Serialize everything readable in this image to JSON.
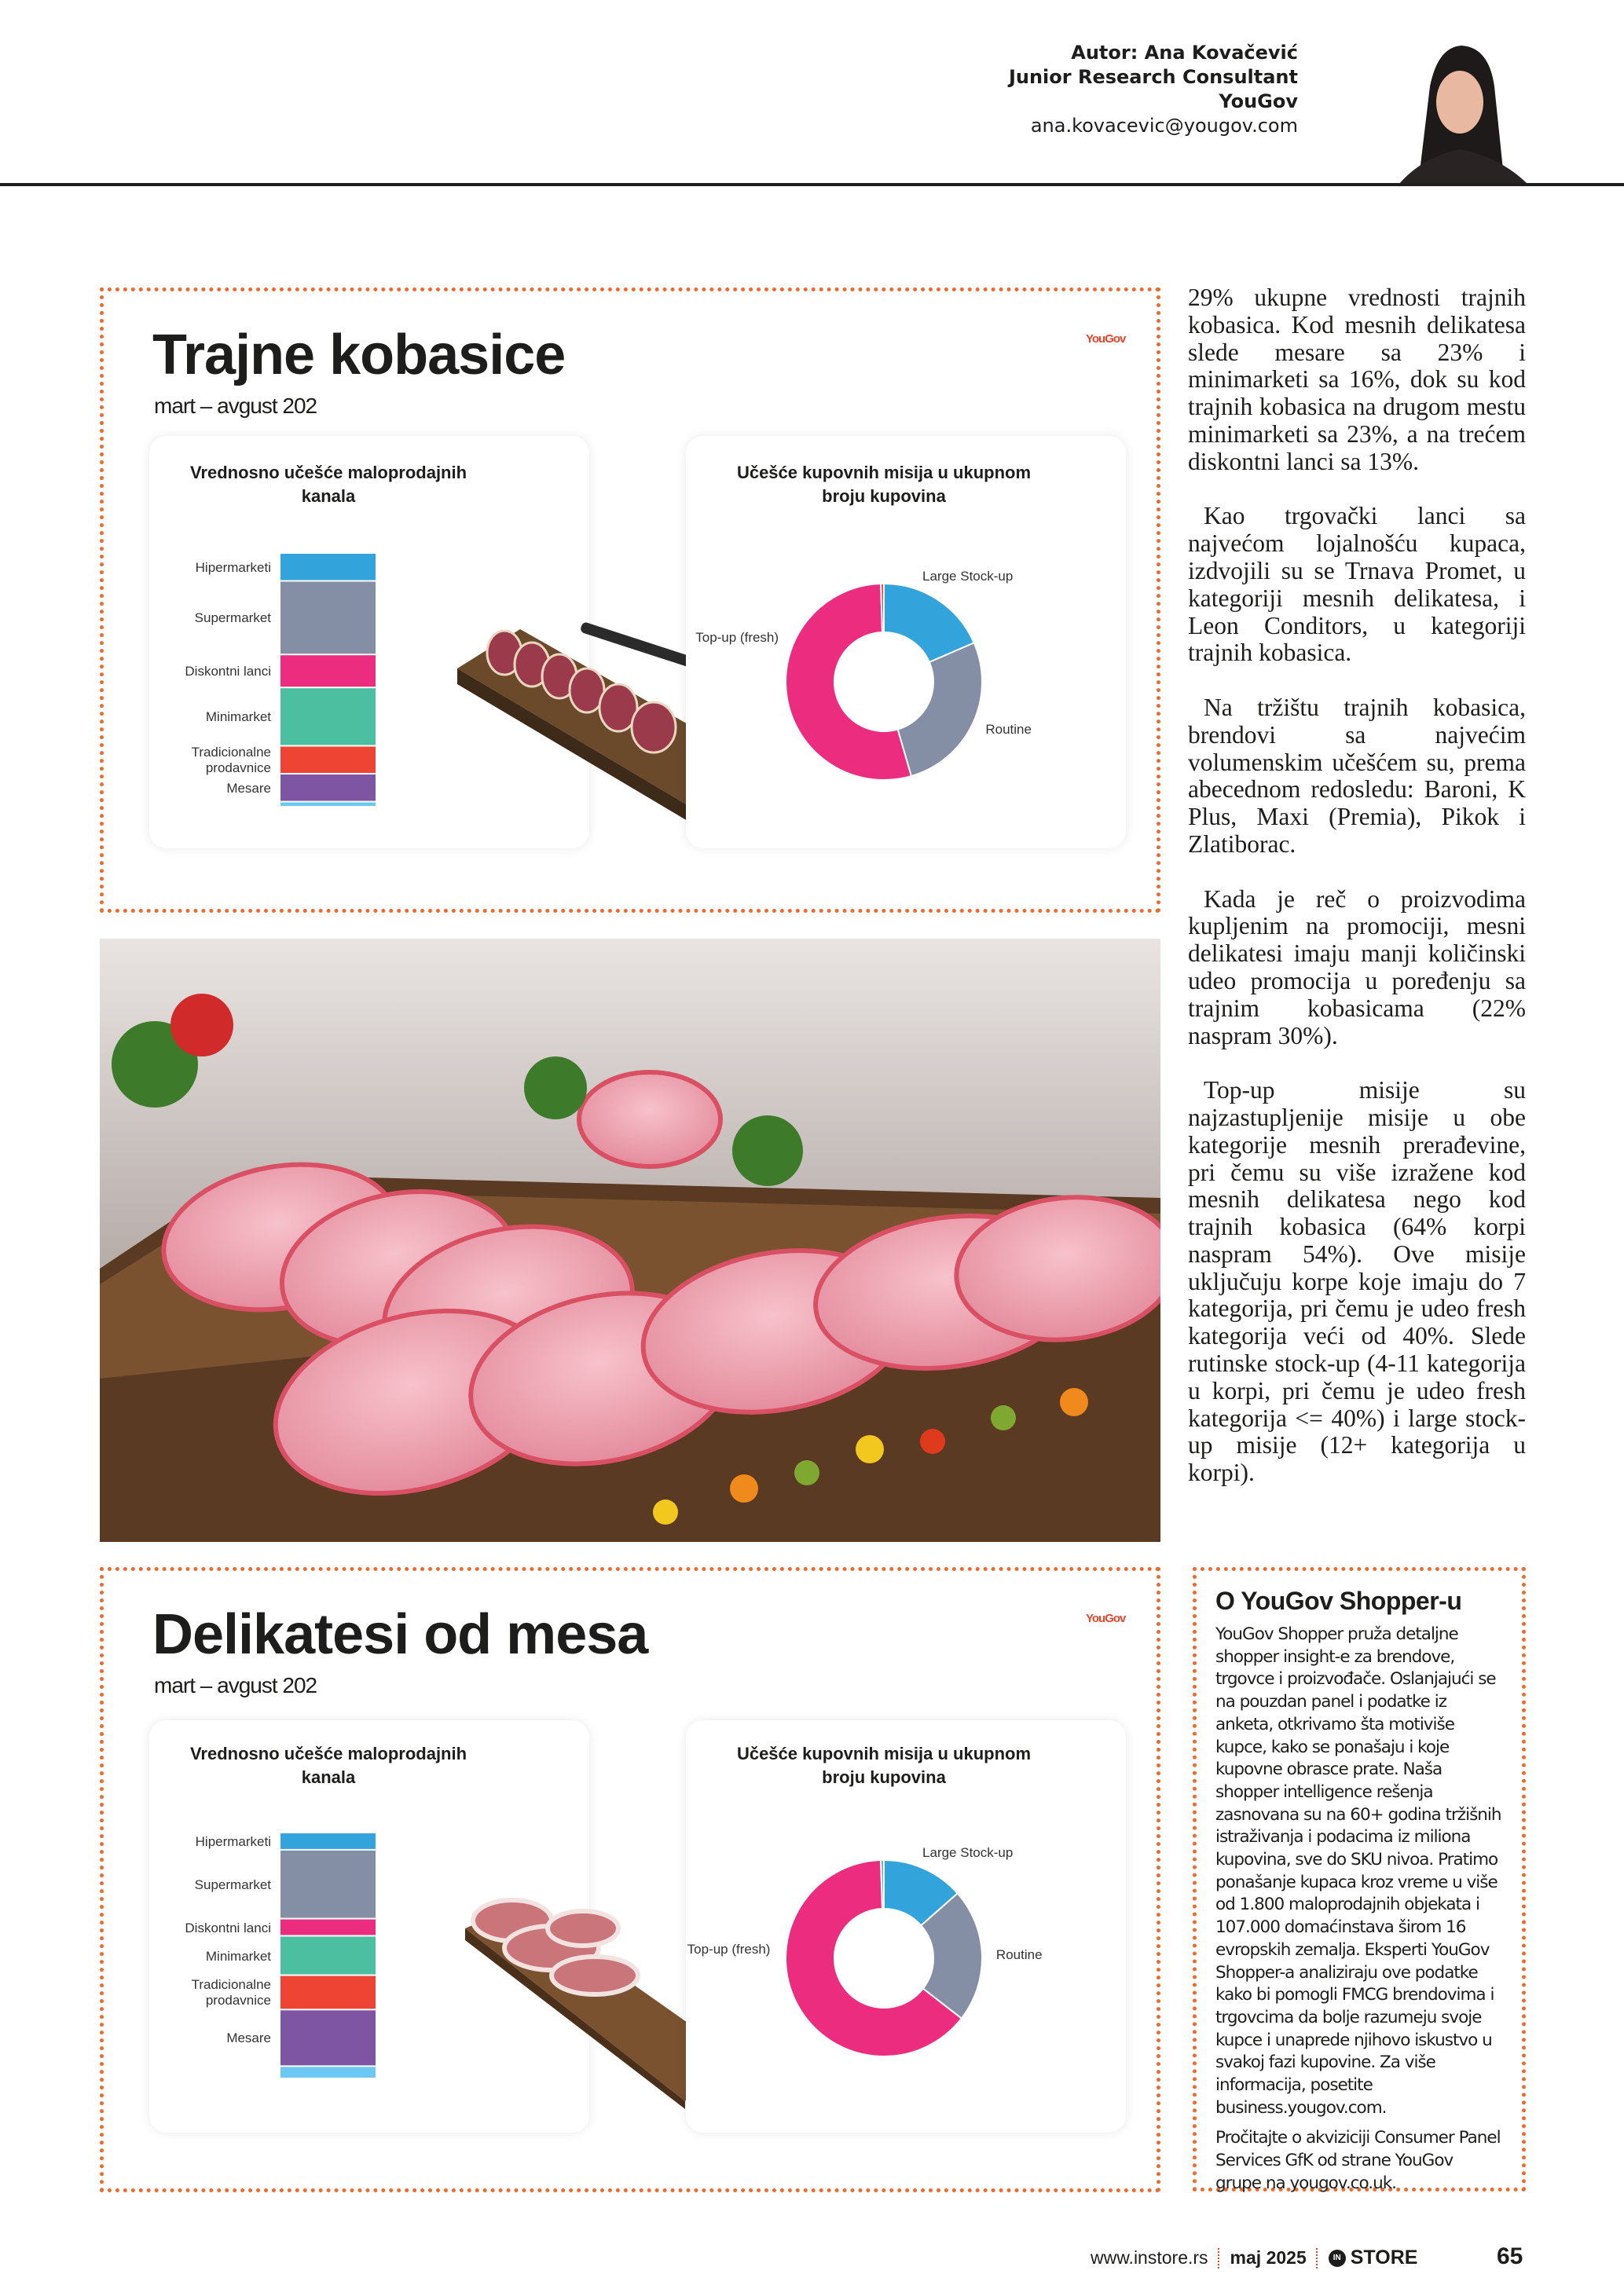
{
  "author": {
    "name": "Autor: Ana Kovačević",
    "role": "Junior Research Consultant",
    "company": "YouGov",
    "email": "ana.kovacevic@yougov.com"
  },
  "sections": [
    {
      "title": "Trajne kobasice",
      "subtitle": "mart – avgust 202",
      "logo": "YouGov"
    },
    {
      "title": "Delikatesi od mesa",
      "subtitle": "mart – avgust 202",
      "logo": "YouGov"
    }
  ],
  "chart_data": [
    {
      "type": "bar",
      "stacked": true,
      "title": "Vrednosno učešće maloprodajnih kanala",
      "categories": [
        "Hipermarketi",
        "Supermarket",
        "Diskontni lanci",
        "Minimarket",
        "Tradicionalne prodavnice",
        "Mesare",
        ""
      ],
      "values": [
        11,
        29,
        13,
        23,
        11,
        11,
        2
      ],
      "colors": [
        "#33a3dc",
        "#848ea4",
        "#ec2c7f",
        "#4bbfa0",
        "#ee4433",
        "#7e55a3",
        "#6cc8f2"
      ]
    },
    {
      "type": "pie",
      "donut": true,
      "title": "Učešće kupovnih misija u ukupnom broju kupovina",
      "categories": [
        "Large Stock-up",
        "Routine",
        "Top-up (fresh)",
        ""
      ],
      "values": [
        18.5,
        27,
        54,
        0.5
      ],
      "colors": [
        "#33a3dc",
        "#848ea4",
        "#ec2c7f",
        "#ee4433"
      ]
    },
    {
      "type": "bar",
      "stacked": true,
      "title": "Vrednosno učešće maloprodajnih kanala",
      "categories": [
        "Hipermarketi",
        "Supermarket",
        "Diskontni lanci",
        "Minimarket",
        "Tradicionalne prodavnice",
        "Mesare",
        ""
      ],
      "values": [
        7,
        28,
        7,
        16,
        14,
        23,
        5
      ],
      "colors": [
        "#33a3dc",
        "#848ea4",
        "#ec2c7f",
        "#4bbfa0",
        "#ee4433",
        "#7e55a3",
        "#6cc8f2"
      ]
    },
    {
      "type": "pie",
      "donut": true,
      "title": "Učešće kupovnih misija u ukupnom broju kupovina",
      "categories": [
        "Large Stock-up",
        "Routine",
        "Top-up (fresh)",
        ""
      ],
      "values": [
        13.5,
        22,
        64,
        0.5
      ],
      "colors": [
        "#33a3dc",
        "#848ea4",
        "#ec2c7f",
        "#4bbfa0"
      ]
    }
  ],
  "article": {
    "paragraphs": [
      "29% ukupne vrednosti trajnih kobasica. Kod mesnih delikatesa slede mesare sa 23% i minimarketi sa 16%, dok su kod trajnih kobasica na drugom mestu minimarketi sa 23%, a na trećem diskontni lanci sa 13%.",
      "Kao trgovački lanci sa najvećom lojalnošću kupaca, izdvojili su se Trnava Promet, u kategoriji mesnih delikatesa, i Leon Conditors, u kategoriji trajnih kobasica.",
      "Na tržištu trajnih kobasica, brendovi sa najvećim volumenskim učešćem su, prema abecednom redosledu: Baroni, K Plus, Maxi (Premia), Pikok i Zlatiborac.",
      "Kada je reč o proizvodima kupljenim na promociji, mesni delikatesi imaju manji količinski udeo promocija u poređenju sa trajnim kobasicama (22% naspram 30%).",
      "Top-up misije su najzastupljenije misije u obe kategorije mesnih prerađevine, pri čemu su više izražene kod mesnih delikatesa nego kod trajnih kobasica (64% korpi naspram 54%). Ove misije uključuju korpe koje imaju do 7 kategorija, pri čemu je udeo fresh kategorija veći od 40%. Slede rutinske stock-up (4-11 kategorija u korpi, pri čemu je udeo fresh kategorija <= 40%) i large stock-up misije (12+ kategorija u korpi)."
    ]
  },
  "infobox": {
    "title": "O YouGov Shopper-u",
    "body": "YouGov Shopper pruža detaljne shopper insight-e za brendove, trgovce i proizvođače. Oslanjajući se na pouzdan panel i podatke iz anketa, otkrivamo šta motiviše kupce, kako se ponašaju i koje kupovne obrasce prate. Naša shopper intelligence rešenja zasnovana su na 60+ godina tržišnih istraživanja i podacima iz miliona kupovina, sve do SKU nivoa. Pratimo ponašanje kupaca kroz vreme u više od 1.800 maloprodajnih objekata i 107.000 domaćinstava širom 16 evropskih zemalja. Eksperti YouGov Shopper-a analiziraju ove podatke kako bi pomogli FMCG brendovima i trgovcima da bolje razumeju svoje kupce i unaprede njihovo iskustvo u svakoj fazi kupovine. Za više informacija, posetite business.yougov.com.",
    "note": "Pročitajte o akviziciji Consumer Panel Services GfK od strane YouGov grupe na yougov.co.uk."
  },
  "footer": {
    "website": "www.instore.rs",
    "issue": "maj 2025",
    "brand": "STORE",
    "brand_mark": "IN",
    "page": "65"
  },
  "colors": {
    "accent": "#ec6a2c",
    "text": "#1d1d1b"
  }
}
